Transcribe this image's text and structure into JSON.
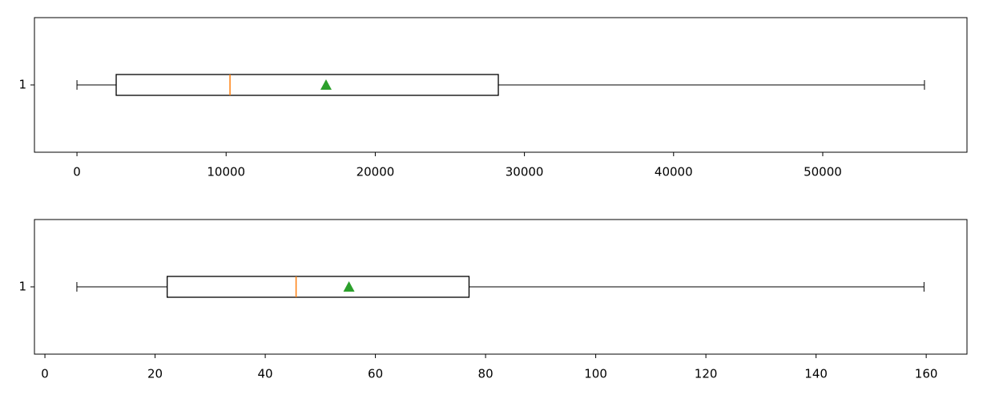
{
  "chart_data": [
    {
      "type": "box",
      "categories": [
        "1"
      ],
      "whislo": [
        0
      ],
      "q1": [
        2630
      ],
      "med": [
        10260
      ],
      "mean": [
        16700
      ],
      "q3": [
        28250
      ],
      "whishi": [
        56820
      ],
      "xlim": [
        -2850,
        59670
      ],
      "xticks": [
        0,
        10000,
        20000,
        30000,
        40000,
        50000
      ],
      "color": "#000000",
      "median_color": "#ff7f0e",
      "mean_color": "#2ca02c"
    },
    {
      "type": "box",
      "categories": [
        "1"
      ],
      "whislo": [
        5.8
      ],
      "q1": [
        22.2
      ],
      "med": [
        45.6
      ],
      "mean": [
        55.2
      ],
      "q3": [
        77.0
      ],
      "whishi": [
        159.6
      ],
      "xlim": [
        -1.9,
        167.4
      ],
      "xticks": [
        0,
        20,
        40,
        60,
        80,
        100,
        120,
        140,
        160
      ],
      "color": "#000000",
      "median_color": "#ff7f0e",
      "mean_color": "#2ca02c"
    }
  ]
}
